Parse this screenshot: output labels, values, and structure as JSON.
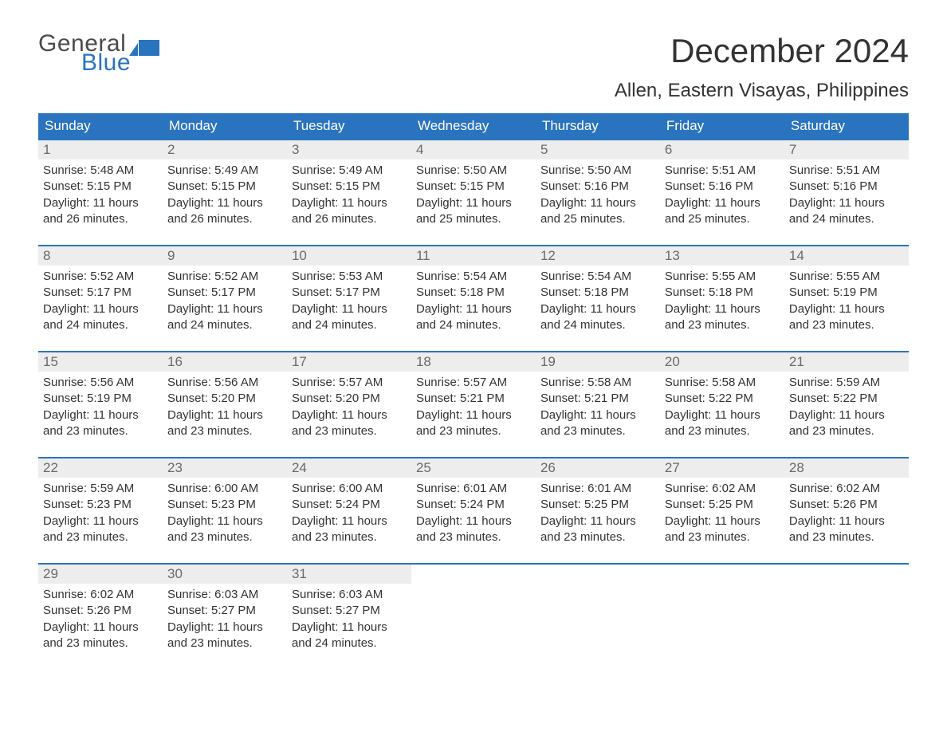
{
  "brand": {
    "top": "General",
    "bottom": "Blue",
    "top_color": "#4b4b4b",
    "bottom_color": "#2a74bf"
  },
  "title": "December 2024",
  "location": "Allen, Eastern Visayas, Philippines",
  "header_bg": "#2a74bf",
  "header_text_color": "#ffffff",
  "daynum_bg": "#ededed",
  "daynum_color": "#6a6a6a",
  "days_of_week": [
    "Sunday",
    "Monday",
    "Tuesday",
    "Wednesday",
    "Thursday",
    "Friday",
    "Saturday"
  ],
  "labels": {
    "sunrise": "Sunrise:",
    "sunset": "Sunset:",
    "daylight": "Daylight:"
  },
  "weeks": [
    [
      {
        "n": "1",
        "rise": "5:48 AM",
        "set": "5:15 PM",
        "dl": "11 hours and 26 minutes."
      },
      {
        "n": "2",
        "rise": "5:49 AM",
        "set": "5:15 PM",
        "dl": "11 hours and 26 minutes."
      },
      {
        "n": "3",
        "rise": "5:49 AM",
        "set": "5:15 PM",
        "dl": "11 hours and 26 minutes."
      },
      {
        "n": "4",
        "rise": "5:50 AM",
        "set": "5:15 PM",
        "dl": "11 hours and 25 minutes."
      },
      {
        "n": "5",
        "rise": "5:50 AM",
        "set": "5:16 PM",
        "dl": "11 hours and 25 minutes."
      },
      {
        "n": "6",
        "rise": "5:51 AM",
        "set": "5:16 PM",
        "dl": "11 hours and 25 minutes."
      },
      {
        "n": "7",
        "rise": "5:51 AM",
        "set": "5:16 PM",
        "dl": "11 hours and 24 minutes."
      }
    ],
    [
      {
        "n": "8",
        "rise": "5:52 AM",
        "set": "5:17 PM",
        "dl": "11 hours and 24 minutes."
      },
      {
        "n": "9",
        "rise": "5:52 AM",
        "set": "5:17 PM",
        "dl": "11 hours and 24 minutes."
      },
      {
        "n": "10",
        "rise": "5:53 AM",
        "set": "5:17 PM",
        "dl": "11 hours and 24 minutes."
      },
      {
        "n": "11",
        "rise": "5:54 AM",
        "set": "5:18 PM",
        "dl": "11 hours and 24 minutes."
      },
      {
        "n": "12",
        "rise": "5:54 AM",
        "set": "5:18 PM",
        "dl": "11 hours and 24 minutes."
      },
      {
        "n": "13",
        "rise": "5:55 AM",
        "set": "5:18 PM",
        "dl": "11 hours and 23 minutes."
      },
      {
        "n": "14",
        "rise": "5:55 AM",
        "set": "5:19 PM",
        "dl": "11 hours and 23 minutes."
      }
    ],
    [
      {
        "n": "15",
        "rise": "5:56 AM",
        "set": "5:19 PM",
        "dl": "11 hours and 23 minutes."
      },
      {
        "n": "16",
        "rise": "5:56 AM",
        "set": "5:20 PM",
        "dl": "11 hours and 23 minutes."
      },
      {
        "n": "17",
        "rise": "5:57 AM",
        "set": "5:20 PM",
        "dl": "11 hours and 23 minutes."
      },
      {
        "n": "18",
        "rise": "5:57 AM",
        "set": "5:21 PM",
        "dl": "11 hours and 23 minutes."
      },
      {
        "n": "19",
        "rise": "5:58 AM",
        "set": "5:21 PM",
        "dl": "11 hours and 23 minutes."
      },
      {
        "n": "20",
        "rise": "5:58 AM",
        "set": "5:22 PM",
        "dl": "11 hours and 23 minutes."
      },
      {
        "n": "21",
        "rise": "5:59 AM",
        "set": "5:22 PM",
        "dl": "11 hours and 23 minutes."
      }
    ],
    [
      {
        "n": "22",
        "rise": "5:59 AM",
        "set": "5:23 PM",
        "dl": "11 hours and 23 minutes."
      },
      {
        "n": "23",
        "rise": "6:00 AM",
        "set": "5:23 PM",
        "dl": "11 hours and 23 minutes."
      },
      {
        "n": "24",
        "rise": "6:00 AM",
        "set": "5:24 PM",
        "dl": "11 hours and 23 minutes."
      },
      {
        "n": "25",
        "rise": "6:01 AM",
        "set": "5:24 PM",
        "dl": "11 hours and 23 minutes."
      },
      {
        "n": "26",
        "rise": "6:01 AM",
        "set": "5:25 PM",
        "dl": "11 hours and 23 minutes."
      },
      {
        "n": "27",
        "rise": "6:02 AM",
        "set": "5:25 PM",
        "dl": "11 hours and 23 minutes."
      },
      {
        "n": "28",
        "rise": "6:02 AM",
        "set": "5:26 PM",
        "dl": "11 hours and 23 minutes."
      }
    ],
    [
      {
        "n": "29",
        "rise": "6:02 AM",
        "set": "5:26 PM",
        "dl": "11 hours and 23 minutes."
      },
      {
        "n": "30",
        "rise": "6:03 AM",
        "set": "5:27 PM",
        "dl": "11 hours and 23 minutes."
      },
      {
        "n": "31",
        "rise": "6:03 AM",
        "set": "5:27 PM",
        "dl": "11 hours and 24 minutes."
      },
      null,
      null,
      null,
      null
    ]
  ]
}
